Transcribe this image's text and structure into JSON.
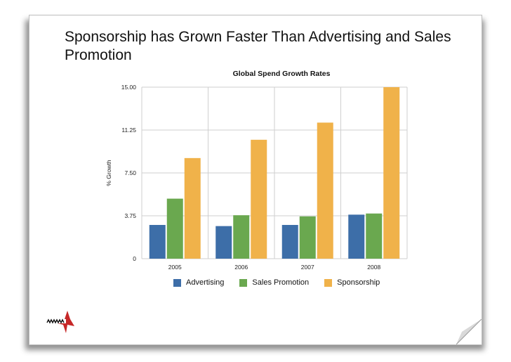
{
  "slide": {
    "title": "Sponsorship has Grown Faster Than Advertising and Sales Promotion"
  },
  "chart_data": {
    "type": "bar",
    "title": "Global Spend Growth Rates",
    "ylabel": "% Growth",
    "xlabel": "",
    "categories": [
      "2005",
      "2006",
      "2007",
      "2008"
    ],
    "yticks": [
      "0",
      "3.75",
      "7.50",
      "11.25",
      "15.00"
    ],
    "ylim": [
      0,
      15
    ],
    "grid": true,
    "legend_position": "bottom",
    "series": [
      {
        "name": "Advertising",
        "color": "#3d6ea8",
        "values": [
          2.95,
          2.85,
          2.95,
          3.85
        ]
      },
      {
        "name": "Sales Promotion",
        "color": "#6aa84f",
        "values": [
          5.25,
          3.8,
          3.7,
          3.95
        ]
      },
      {
        "name": "Sponsorship",
        "color": "#f0b24a",
        "values": [
          8.8,
          10.4,
          11.9,
          15.0
        ]
      }
    ]
  },
  "icons": {
    "logo": "red-star-logo",
    "page_curl": "page-curl-icon"
  }
}
